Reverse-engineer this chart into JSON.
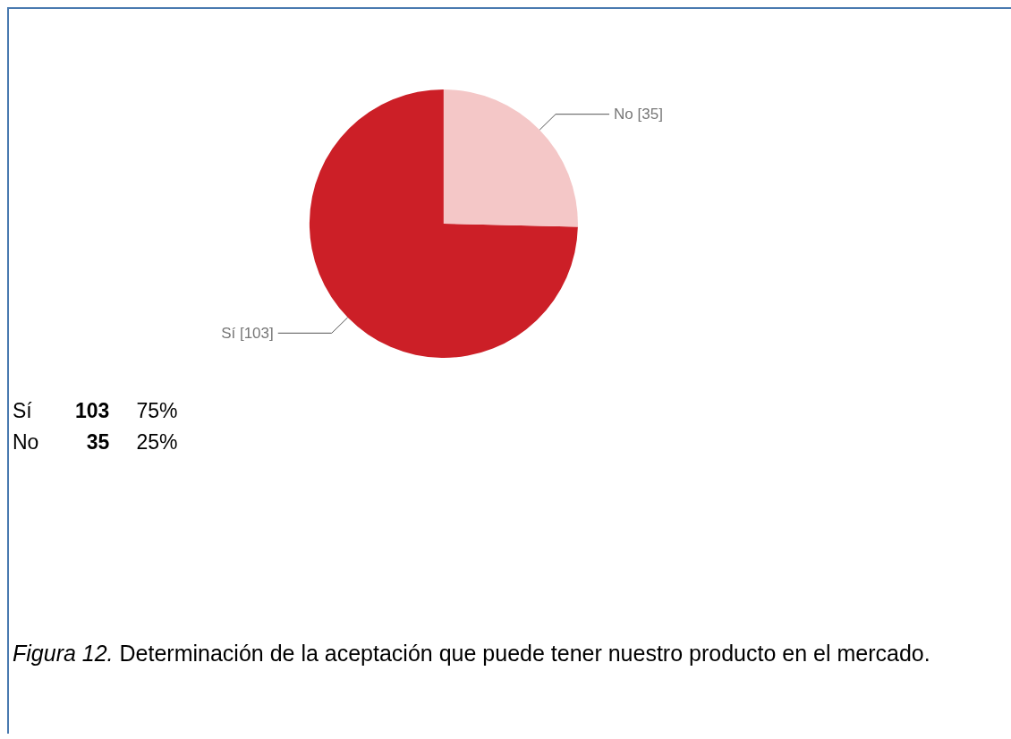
{
  "chart_data": [
    {
      "type": "pie",
      "categories": [
        "Sí",
        "No"
      ],
      "values": [
        103,
        35
      ],
      "colors": [
        "#cc1f27",
        "#f4c7c7"
      ],
      "value_labels": [
        "[103]",
        "[35]"
      ],
      "legend": false,
      "annotations": [
        "Figura 12.",
        "Determinación de la aceptación que puede tener nuestro producto en el mercado."
      ]
    },
    {
      "type": "other",
      "annotations": [
        "Sí",
        "103",
        "75%",
        "No",
        "35",
        "25%"
      ]
    }
  ]
}
